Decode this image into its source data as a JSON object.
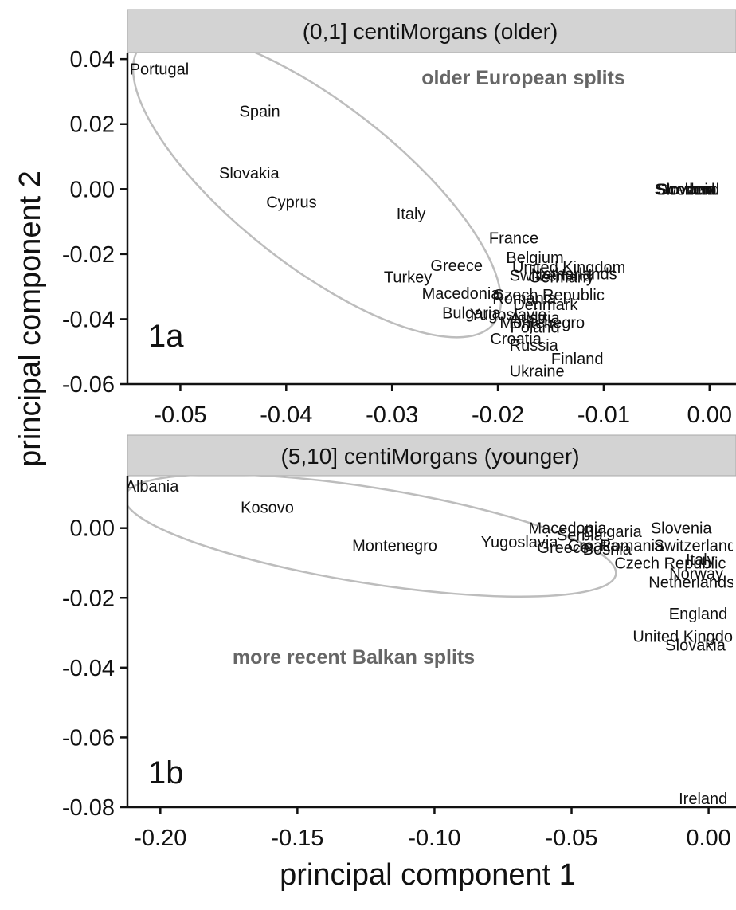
{
  "chart_data": {
    "type": "scatter",
    "xlabel": "principal component 1",
    "ylabel": "principal component 2",
    "panels": [
      {
        "strip": "(0,1] centiMorgans (older)",
        "tag": "1a",
        "annotation": "older European splits",
        "xlim": [
          -0.055,
          0.0025
        ],
        "ylim": [
          -0.06,
          0.042
        ],
        "xticks": [
          -0.05,
          -0.04,
          -0.03,
          -0.02,
          -0.01,
          0.0
        ],
        "xtick_labels": [
          "-0.05",
          "-0.04",
          "-0.03",
          "-0.02",
          "-0.01",
          "0.00"
        ],
        "yticks": [
          0.04,
          0.02,
          0.0,
          -0.02,
          -0.04,
          -0.06
        ],
        "ytick_labels": [
          "0.04",
          "0.02",
          "0.00",
          "-0.02",
          "-0.04",
          "-0.06"
        ],
        "points": [
          {
            "label": "Portugal",
            "x": -0.052,
            "y": 0.037
          },
          {
            "label": "Spain",
            "x": -0.0425,
            "y": 0.024
          },
          {
            "label": "Slovakia",
            "x": -0.0435,
            "y": 0.005
          },
          {
            "label": "Cyprus",
            "x": -0.0395,
            "y": -0.004
          },
          {
            "label": "Italy",
            "x": -0.0282,
            "y": -0.0075
          },
          {
            "label": "France",
            "x": -0.0185,
            "y": -0.015
          },
          {
            "label": "Belgium",
            "x": -0.0165,
            "y": -0.021
          },
          {
            "label": "Greece",
            "x": -0.0239,
            "y": -0.0235
          },
          {
            "label": "United Kingdom",
            "x": -0.0133,
            "y": -0.024
          },
          {
            "label": "Netherlands",
            "x": -0.0128,
            "y": -0.026
          },
          {
            "label": "Germany",
            "x": -0.014,
            "y": -0.027
          },
          {
            "label": "Switzerland",
            "x": -0.015,
            "y": -0.0265
          },
          {
            "label": "Turkey",
            "x": -0.0285,
            "y": -0.027
          },
          {
            "label": "Macedonia",
            "x": -0.0235,
            "y": -0.032
          },
          {
            "label": "Czech Republic",
            "x": -0.0152,
            "y": -0.0325
          },
          {
            "label": "Romania",
            "x": -0.0175,
            "y": -0.0335
          },
          {
            "label": "Denmark",
            "x": -0.0155,
            "y": -0.0355
          },
          {
            "label": "Bulgaria",
            "x": -0.0225,
            "y": -0.038
          },
          {
            "label": "Yugoslavia",
            "x": -0.019,
            "y": -0.0385
          },
          {
            "label": "Montenegro",
            "x": -0.0158,
            "y": -0.041
          },
          {
            "label": "Austria",
            "x": -0.0165,
            "y": -0.0395
          },
          {
            "label": "Poland",
            "x": -0.0165,
            "y": -0.0425
          },
          {
            "label": "Croatia",
            "x": -0.0183,
            "y": -0.046
          },
          {
            "label": "Russia",
            "x": -0.0166,
            "y": -0.048
          },
          {
            "label": "Finland",
            "x": -0.0125,
            "y": -0.0522
          },
          {
            "label": "Ukraine",
            "x": -0.0163,
            "y": -0.056
          },
          {
            "label": "Sweden",
            "x": -0.0025,
            "y": 0.0
          },
          {
            "label": "Slovenia",
            "x": -0.0022,
            "y": 0.0
          },
          {
            "label": "Scotland",
            "x": -0.002,
            "y": 0.0
          },
          {
            "label": "Ireland",
            "x": -0.0018,
            "y": 0.0
          }
        ]
      },
      {
        "strip": "(5,10] centiMorgans (younger)",
        "tag": "1b",
        "annotation": "more recent Balkan splits",
        "xlim": [
          -0.212,
          0.01
        ],
        "ylim": [
          -0.08,
          0.015
        ],
        "xticks": [
          -0.2,
          -0.15,
          -0.1,
          -0.05,
          0.0
        ],
        "xtick_labels": [
          "-0.20",
          "-0.15",
          "-0.10",
          "-0.05",
          "0.00"
        ],
        "yticks": [
          0.0,
          -0.02,
          -0.04,
          -0.06,
          -0.08
        ],
        "ytick_labels": [
          "0.00",
          "-0.02",
          "-0.04",
          "-0.06",
          "-0.08"
        ],
        "points": [
          {
            "label": "Albania",
            "x": -0.203,
            "y": 0.012
          },
          {
            "label": "Kosovo",
            "x": -0.161,
            "y": 0.006
          },
          {
            "label": "Montenegro",
            "x": -0.1145,
            "y": -0.005
          },
          {
            "label": "Yugoslavia",
            "x": -0.069,
            "y": -0.004
          },
          {
            "label": "Macedonia",
            "x": -0.0515,
            "y": 0.0
          },
          {
            "label": "Greece",
            "x": -0.053,
            "y": -0.0055
          },
          {
            "label": "Serbia",
            "x": -0.047,
            "y": -0.002
          },
          {
            "label": "Croatia",
            "x": -0.042,
            "y": -0.005
          },
          {
            "label": "Bosnia",
            "x": -0.037,
            "y": -0.006
          },
          {
            "label": "Bulgaria",
            "x": -0.035,
            "y": -0.001
          },
          {
            "label": "Romania",
            "x": -0.028,
            "y": -0.005
          },
          {
            "label": "Czech Republic",
            "x": -0.014,
            "y": -0.01
          },
          {
            "label": "Slovenia",
            "x": -0.01,
            "y": 0.0
          },
          {
            "label": "Switzerland",
            "x": -0.005,
            "y": -0.005
          },
          {
            "label": "Italy",
            "x": -0.003,
            "y": -0.009
          },
          {
            "label": "Norway",
            "x": -0.0045,
            "y": -0.013
          },
          {
            "label": "Netherlands",
            "x": -0.0062,
            "y": -0.0155
          },
          {
            "label": "England",
            "x": -0.0038,
            "y": -0.0245
          },
          {
            "label": "United Kingdom",
            "x": -0.007,
            "y": -0.031
          },
          {
            "label": "Slovakia",
            "x": -0.0048,
            "y": -0.0335
          },
          {
            "label": "Ireland",
            "x": -0.002,
            "y": -0.0775
          }
        ]
      }
    ]
  }
}
